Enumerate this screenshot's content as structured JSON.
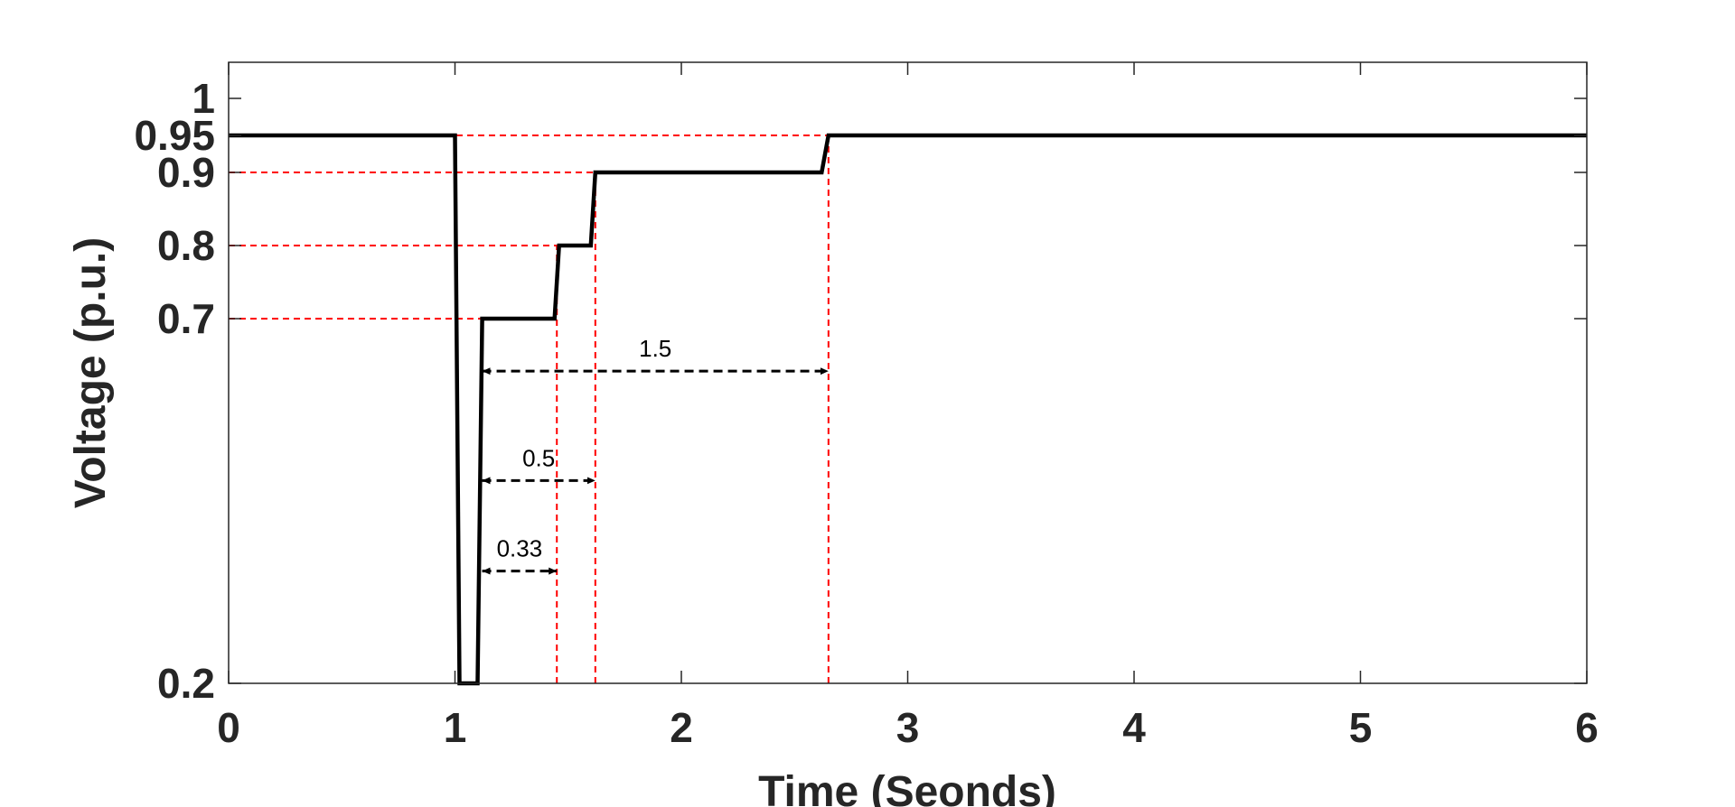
{
  "chart_data": {
    "type": "line",
    "title": "",
    "xlabel": "Time (Seonds)",
    "ylabel": "Voltage (p.u.)",
    "xlim": [
      0,
      6
    ],
    "ylim": [
      0.2,
      1.0
    ],
    "x_ticks": [
      0,
      1,
      2,
      3,
      4,
      5,
      6
    ],
    "x_tick_labels": [
      "0",
      "1",
      "2",
      "3",
      "4",
      "5",
      "6"
    ],
    "y_ticks": [
      0.2,
      0.7,
      0.8,
      0.9,
      0.95,
      1
    ],
    "y_tick_labels": [
      "0.2",
      "0.7",
      "0.8",
      "0.9",
      "0.95",
      "1"
    ],
    "grid": false,
    "legend": "none",
    "series": [
      {
        "color": "#000000",
        "x": [
          0,
          1.0,
          1.02,
          1.1,
          1.12,
          1.44,
          1.46,
          1.6,
          1.62,
          2.62,
          2.65,
          6
        ],
        "y": [
          0.95,
          0.95,
          0.2,
          0.2,
          0.7,
          0.7,
          0.8,
          0.8,
          0.9,
          0.9,
          0.95,
          0.95
        ]
      }
    ],
    "reference_lines": {
      "color": "#ff0000",
      "horizontal": [
        {
          "y": 0.95,
          "x_to": 2.65
        },
        {
          "y": 0.9,
          "x_to": 1.62
        },
        {
          "y": 0.8,
          "x_to": 1.46
        },
        {
          "y": 0.7,
          "x_to": 1.12
        }
      ],
      "vertical": [
        {
          "x": 1.45,
          "y_to": 0.8
        },
        {
          "x": 1.62,
          "y_to": 0.9
        },
        {
          "x": 2.65,
          "y_to": 0.95
        }
      ]
    },
    "annotations": [
      {
        "label": "1.5",
        "x_from": 1.12,
        "x_to": 2.65,
        "y": 0.628
      },
      {
        "label": "0.5",
        "x_from": 1.12,
        "x_to": 1.62,
        "y": 0.478
      },
      {
        "label": "0.33",
        "x_from": 1.12,
        "x_to": 1.45,
        "y": 0.354
      }
    ]
  }
}
